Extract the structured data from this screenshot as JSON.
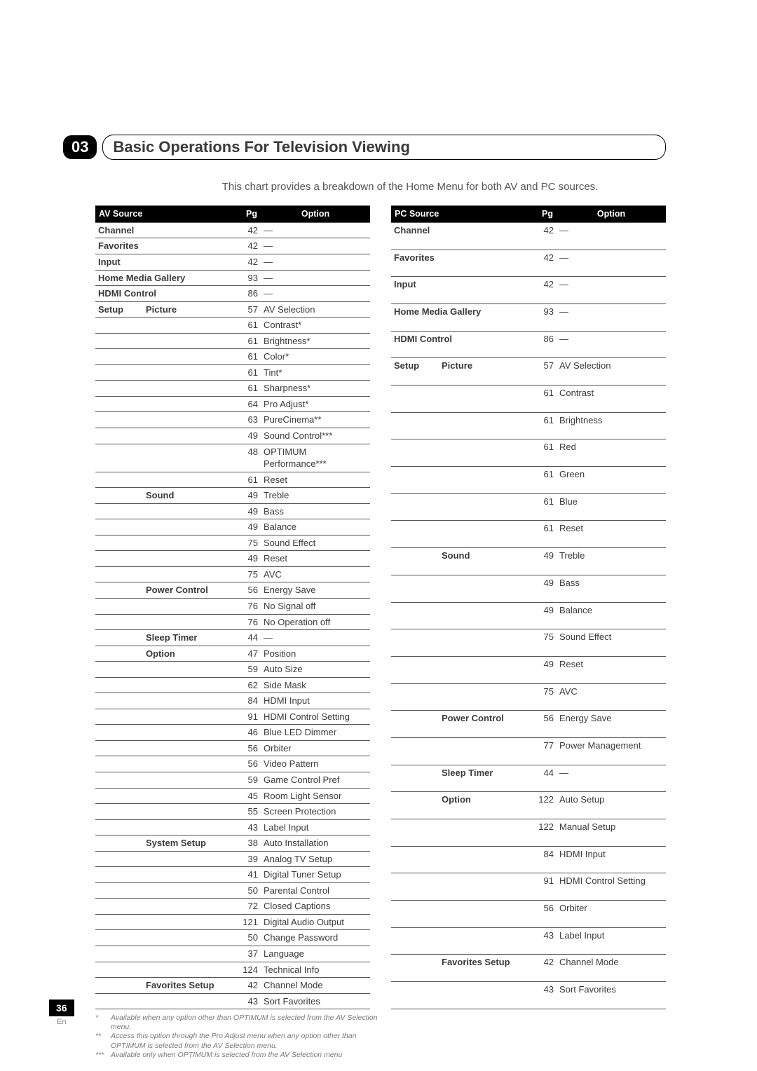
{
  "chapterNumber": "03",
  "chapterTitle": "Basic Operations For Television Viewing",
  "intro": "This chart provides a breakdown of the Home Menu for both AV and PC sources.",
  "pageNumber": "36",
  "pageLang": "En",
  "headers": {
    "pg": "Pg",
    "option": "Option"
  },
  "avHeader": "AV Source",
  "pcHeader": "PC Source",
  "footnotes": [
    {
      "mark": "*",
      "text": "Available when any option other than OPTIMUM is selected from the AV Selection menu."
    },
    {
      "mark": "**",
      "text": "Access this option through the Pro Adjust menu when any option other than OPTIMUM is selected from the AV Selection menu."
    },
    {
      "mark": "***",
      "text": "Available only when OPTIMUM is selected from the AV Selection menu"
    }
  ],
  "avRows": [
    {
      "c1": "Channel",
      "bold1": true,
      "pg": "42",
      "opt": "—"
    },
    {
      "c1": "Favorites",
      "bold1": true,
      "pg": "42",
      "opt": "—"
    },
    {
      "c1": "Input",
      "bold1": true,
      "pg": "42",
      "opt": "—"
    },
    {
      "c1": "Home Media Gallery",
      "bold1": true,
      "span": true,
      "pg": "93",
      "opt": "—"
    },
    {
      "c1": "HDMI Control",
      "bold1": true,
      "span": true,
      "pg": "86",
      "opt": "—"
    },
    {
      "c1": "Setup",
      "bold1": true,
      "c2": "Picture",
      "bold2": true,
      "pg": "57",
      "opt": "AV Selection"
    },
    {
      "pg": "61",
      "opt": "Contrast*"
    },
    {
      "pg": "61",
      "opt": "Brightness*"
    },
    {
      "pg": "61",
      "opt": "Color*"
    },
    {
      "pg": "61",
      "opt": "Tint*"
    },
    {
      "pg": "61",
      "opt": "Sharpness*"
    },
    {
      "pg": "64",
      "opt": "Pro Adjust*"
    },
    {
      "pg": "63",
      "opt": "PureCinema**"
    },
    {
      "pg": "49",
      "opt": "Sound Control***"
    },
    {
      "pg": "48",
      "opt": "OPTIMUM Performance***"
    },
    {
      "pg": "61",
      "opt": "Reset"
    },
    {
      "c2": "Sound",
      "bold2": true,
      "pg": "49",
      "opt": "Treble"
    },
    {
      "pg": "49",
      "opt": "Bass"
    },
    {
      "pg": "49",
      "opt": "Balance"
    },
    {
      "pg": "75",
      "opt": "Sound Effect"
    },
    {
      "pg": "49",
      "opt": "Reset"
    },
    {
      "pg": "75",
      "opt": "AVC"
    },
    {
      "c2": "Power Control",
      "bold2": true,
      "pg": "56",
      "opt": "Energy Save"
    },
    {
      "pg": "76",
      "opt": "No Signal off"
    },
    {
      "pg": "76",
      "opt": "No Operation off"
    },
    {
      "c2": "Sleep Timer",
      "bold2": true,
      "pg": "44",
      "opt": "—"
    },
    {
      "c2": "Option",
      "bold2": true,
      "pg": "47",
      "opt": "Position"
    },
    {
      "pg": "59",
      "opt": "Auto Size"
    },
    {
      "pg": "62",
      "opt": "Side Mask"
    },
    {
      "pg": "84",
      "opt": "HDMI Input"
    },
    {
      "pg": "91",
      "opt": "HDMI Control Setting"
    },
    {
      "pg": "46",
      "opt": "Blue LED Dimmer"
    },
    {
      "pg": "56",
      "opt": "Orbiter"
    },
    {
      "pg": "56",
      "opt": "Video Pattern"
    },
    {
      "pg": "59",
      "opt": "Game Control Pref"
    },
    {
      "pg": "45",
      "opt": "Room Light Sensor"
    },
    {
      "pg": "55",
      "opt": "Screen Protection"
    },
    {
      "pg": "43",
      "opt": "Label Input"
    },
    {
      "c2": "System Setup",
      "bold2": true,
      "pg": "38",
      "opt": "Auto Installation"
    },
    {
      "pg": "39",
      "opt": "Analog TV Setup"
    },
    {
      "pg": "41",
      "opt": "Digital Tuner Setup"
    },
    {
      "pg": "50",
      "opt": "Parental Control"
    },
    {
      "pg": "72",
      "opt": "Closed Captions"
    },
    {
      "pg": "121",
      "opt": "Digital Audio Output"
    },
    {
      "pg": "50",
      "opt": "Change Password"
    },
    {
      "pg": "37",
      "opt": "Language"
    },
    {
      "pg": "124",
      "opt": "Technical Info"
    },
    {
      "c2": "Favorites Setup",
      "bold2": true,
      "pg": "42",
      "opt": "Channel Mode"
    },
    {
      "pg": "43",
      "opt": "Sort Favorites"
    }
  ],
  "pcRows": [
    {
      "c1": "Channel",
      "bold1": true,
      "pg": "42",
      "opt": "—"
    },
    {
      "c1": "Favorites",
      "bold1": true,
      "pg": "42",
      "opt": "—"
    },
    {
      "c1": "Input",
      "bold1": true,
      "pg": "42",
      "opt": "—"
    },
    {
      "c1": "Home Media Gallery",
      "bold1": true,
      "span": true,
      "pg": "93",
      "opt": "—"
    },
    {
      "c1": "HDMI Control",
      "bold1": true,
      "span": true,
      "pg": "86",
      "opt": "—"
    },
    {
      "c1": "Setup",
      "bold1": true,
      "c2": "Picture",
      "bold2": true,
      "pg": "57",
      "opt": "AV Selection"
    },
    {
      "pg": "61",
      "opt": "Contrast"
    },
    {
      "pg": "61",
      "opt": "Brightness"
    },
    {
      "pg": "61",
      "opt": "Red"
    },
    {
      "pg": "61",
      "opt": "Green"
    },
    {
      "pg": "61",
      "opt": "Blue"
    },
    {
      "pg": "61",
      "opt": "Reset"
    },
    {
      "c2": "Sound",
      "bold2": true,
      "pg": "49",
      "opt": "Treble"
    },
    {
      "pg": "49",
      "opt": "Bass"
    },
    {
      "pg": "49",
      "opt": "Balance"
    },
    {
      "pg": "75",
      "opt": "Sound Effect"
    },
    {
      "pg": "49",
      "opt": "Reset"
    },
    {
      "pg": "75",
      "opt": "AVC"
    },
    {
      "c2": "Power Control",
      "bold2": true,
      "pg": "56",
      "opt": "Energy Save"
    },
    {
      "pg": "77",
      "opt": "Power Management"
    },
    {
      "c2": "Sleep Timer",
      "bold2": true,
      "pg": "44",
      "opt": "—"
    },
    {
      "c2": "Option",
      "bold2": true,
      "pg": "122",
      "opt": "Auto Setup"
    },
    {
      "pg": "122",
      "opt": "Manual Setup"
    },
    {
      "pg": "84",
      "opt": "HDMI Input"
    },
    {
      "pg": "91",
      "opt": "HDMI Control Setting"
    },
    {
      "pg": "56",
      "opt": "Orbiter"
    },
    {
      "pg": "43",
      "opt": "Label Input"
    },
    {
      "c2": "Favorites Setup",
      "bold2": true,
      "pg": "42",
      "opt": "Channel Mode"
    },
    {
      "pg": "43",
      "opt": "Sort Favorites"
    }
  ]
}
